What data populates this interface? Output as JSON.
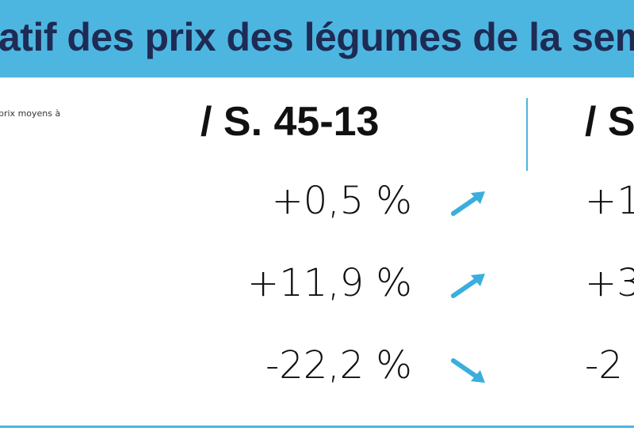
{
  "header": {
    "title": "atif des prix des légumes de la sem"
  },
  "note": "prix moyens à",
  "table": {
    "columns": [
      "/ S. 45-13",
      "/ S"
    ],
    "rows": [
      [
        "+0,5 %",
        "+1"
      ],
      [
        "+11,9 %",
        "+3"
      ],
      [
        "-22,2 %",
        "-2"
      ]
    ]
  }
}
